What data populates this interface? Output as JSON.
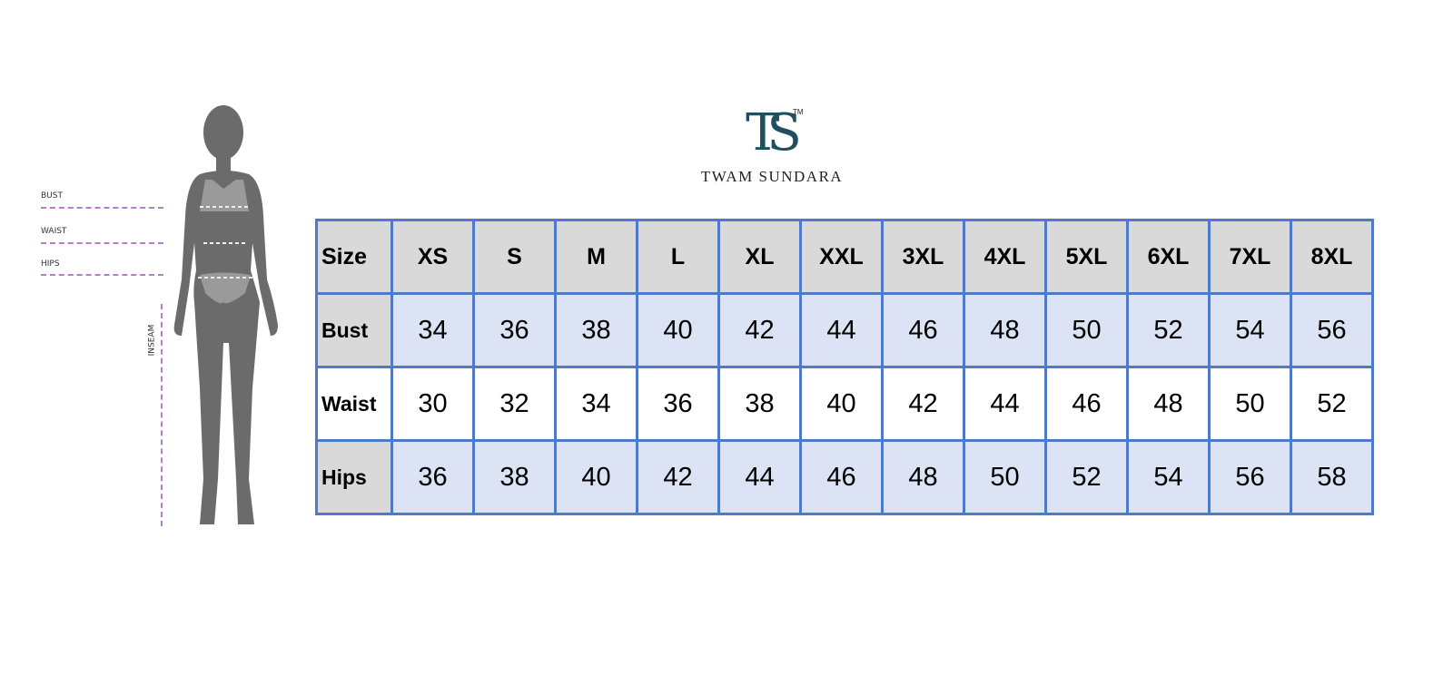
{
  "brand": {
    "name": "TWAM SUNDARA",
    "monogram": "TS",
    "trademark": "TM",
    "color": "#1f4f5f"
  },
  "figure": {
    "labels": {
      "bust": "BUST",
      "waist": "WAIST",
      "hips": "HIPS",
      "inseam": "INSEAM"
    }
  },
  "table": {
    "header": [
      "Size",
      "XS",
      "S",
      "M",
      "L",
      "XL",
      "XXL",
      "3XL",
      "4XL",
      "5XL",
      "6XL",
      "7XL",
      "8XL"
    ],
    "rows": [
      {
        "label": "Bust",
        "values": [
          "34",
          "36",
          "38",
          "40",
          "42",
          "44",
          "46",
          "48",
          "50",
          "52",
          "54",
          "56"
        ]
      },
      {
        "label": "Waist",
        "values": [
          "30",
          "32",
          "34",
          "36",
          "38",
          "40",
          "42",
          "44",
          "46",
          "48",
          "50",
          "52"
        ]
      },
      {
        "label": "Hips",
        "values": [
          "36",
          "38",
          "40",
          "42",
          "44",
          "46",
          "48",
          "50",
          "52",
          "54",
          "56",
          "58"
        ]
      }
    ],
    "border_color": "#4f79c9",
    "header_bg": "#d9d9d9",
    "alt_bg": "#dbe3f4"
  }
}
